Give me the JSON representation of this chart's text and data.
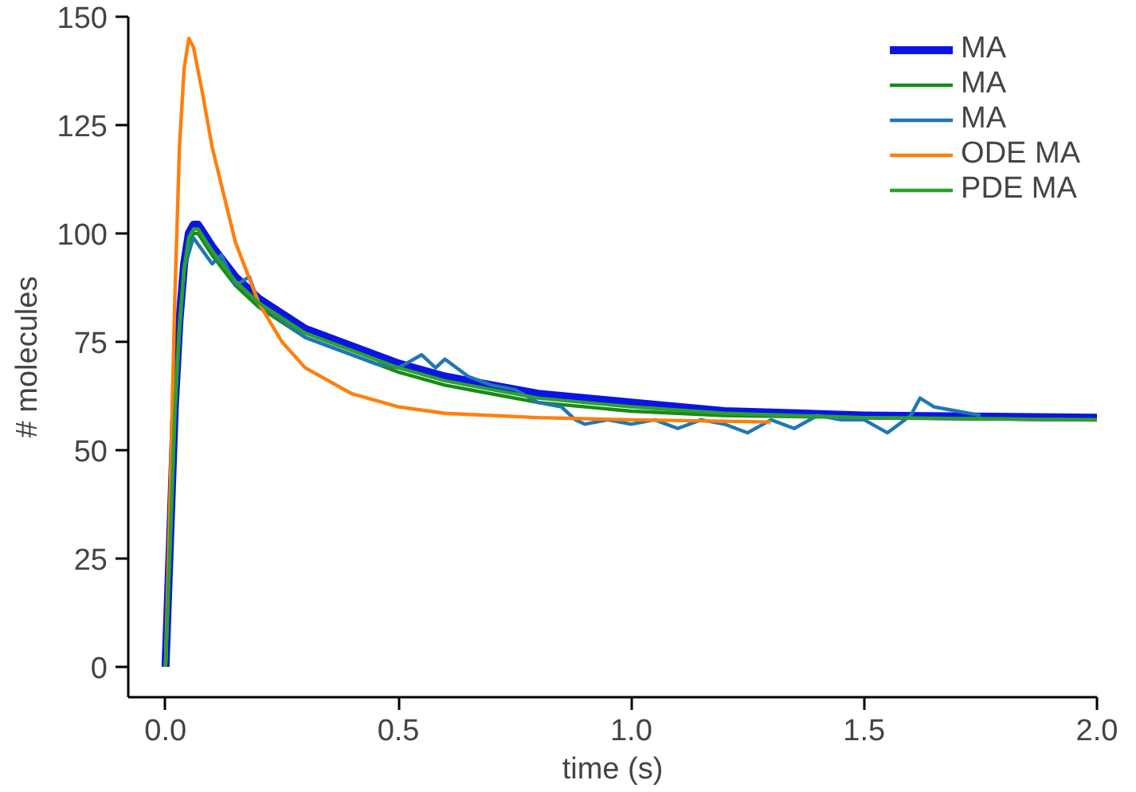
{
  "chart_data": {
    "type": "line",
    "xlabel": "time (s)",
    "ylabel": "# molecules",
    "xlim": [
      -0.08,
      2.0
    ],
    "ylim": [
      -7,
      150
    ],
    "xticks": [
      {
        "value": 0,
        "label": "0.0"
      },
      0.5,
      {
        "value": 1,
        "label": "1.0"
      },
      1.5,
      {
        "value": 2,
        "label": "2.0"
      }
    ],
    "yticks": [
      0,
      25,
      50,
      75,
      100,
      125,
      150
    ],
    "grid": false,
    "legend": "top right",
    "marker": "none",
    "line_style": "solid",
    "series": [
      {
        "name": "MA",
        "color": "#0a14e6",
        "x": [
          0,
          0.01,
          0.02,
          0.03,
          0.04,
          0.05,
          0.06,
          0.07,
          0.1,
          0.15,
          0.2,
          0.3,
          0.4,
          0.5,
          0.6,
          0.7,
          0.8,
          1.0,
          1.2,
          1.5,
          2.0
        ],
        "values": [
          0,
          30,
          60,
          80,
          93,
          100,
          102,
          102,
          97,
          90,
          85,
          78,
          74,
          70,
          67,
          65,
          63,
          61,
          59,
          58,
          57.5
        ]
      },
      {
        "name": "MA",
        "color": "#1a8a1a",
        "x": [
          0,
          0.01,
          0.02,
          0.03,
          0.04,
          0.05,
          0.06,
          0.07,
          0.1,
          0.15,
          0.2,
          0.3,
          0.4,
          0.5,
          0.6,
          0.7,
          0.8,
          1.0,
          1.2,
          1.5,
          2.0
        ],
        "values": [
          0,
          28,
          58,
          78,
          91,
          98,
          100,
          100,
          95,
          88,
          83,
          76,
          72,
          68,
          65,
          63,
          61,
          59,
          58,
          57.5,
          57
        ]
      },
      {
        "name": "MA",
        "color": "#1f77b4",
        "x": [
          0,
          0.02,
          0.04,
          0.06,
          0.08,
          0.1,
          0.12,
          0.15,
          0.18,
          0.2,
          0.25,
          0.3,
          0.35,
          0.4,
          0.45,
          0.5,
          0.55,
          0.58,
          0.6,
          0.65,
          0.7,
          0.75,
          0.8,
          0.85,
          0.88,
          0.9,
          0.95,
          1.0,
          1.05,
          1.1,
          1.15,
          1.2,
          1.25,
          1.3,
          1.35,
          1.4,
          1.45,
          1.5,
          1.55,
          1.6,
          1.62,
          1.65,
          1.7,
          1.75
        ],
        "values": [
          0,
          62,
          92,
          99,
          96,
          93,
          95,
          88,
          90,
          84,
          80,
          76,
          74,
          72,
          70,
          69,
          72,
          69,
          71,
          67,
          65,
          64,
          61,
          60,
          57,
          56,
          57,
          56,
          57,
          55,
          57,
          56,
          54,
          57,
          55,
          58,
          57,
          57,
          54,
          58,
          62,
          60,
          59,
          58
        ]
      },
      {
        "name": "ODE MA",
        "color": "#ff7f0e",
        "x": [
          0,
          0.01,
          0.02,
          0.03,
          0.04,
          0.05,
          0.06,
          0.08,
          0.1,
          0.15,
          0.2,
          0.25,
          0.3,
          0.4,
          0.5,
          0.6,
          0.8,
          1.0,
          1.3
        ],
        "values": [
          0,
          40,
          85,
          120,
          138,
          145,
          143,
          132,
          120,
          98,
          84,
          75,
          69,
          63,
          60,
          58.5,
          57.5,
          57,
          56.5
        ]
      },
      {
        "name": "PDE MA",
        "color": "#2ca02c",
        "x": [
          0,
          0.01,
          0.02,
          0.03,
          0.04,
          0.05,
          0.06,
          0.07,
          0.1,
          0.15,
          0.2,
          0.3,
          0.4,
          0.5,
          0.6,
          0.7,
          0.8,
          1.0,
          1.2,
          1.5,
          2.0
        ],
        "values": [
          0,
          29,
          59,
          79,
          92,
          99,
          101,
          101,
          96,
          89,
          84,
          77,
          73,
          69,
          66,
          64,
          62,
          60,
          58.5,
          57.5,
          57
        ]
      }
    ]
  }
}
